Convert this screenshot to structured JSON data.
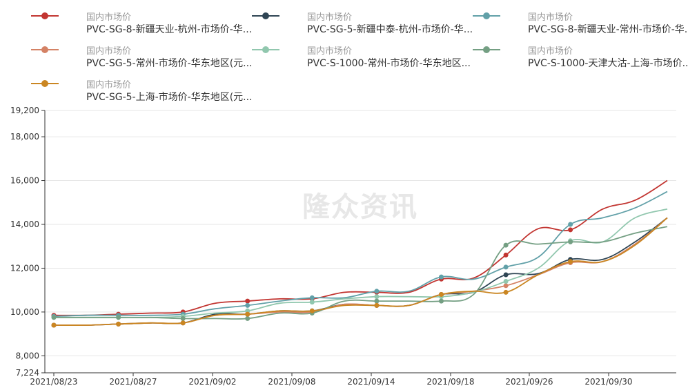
{
  "watermark": "隆众资讯",
  "chart_data": {
    "type": "line",
    "x_ticks": [
      "2021/08/23",
      "2021/08/27",
      "2021/09/02",
      "2021/09/08",
      "2021/09/14",
      "2021/09/18",
      "2021/09/26",
      "2021/09/30"
    ],
    "y_ticks": [
      "19,200",
      "18,000",
      "16,000",
      "14,000",
      "12,000",
      "10,000",
      "8,000",
      "7,224"
    ],
    "ylim": [
      7224,
      19200
    ],
    "grid": "horizontal",
    "legend_position": "top",
    "series": [
      {
        "group": "国内市场价",
        "name": "PVC-SG-8-新疆天业-杭州-市场价-华...",
        "color": "#c23531",
        "values": [
          9850,
          9850,
          9900,
          9950,
          10000,
          10400,
          10500,
          10600,
          10600,
          10900,
          10900,
          10900,
          11500,
          11550,
          12600,
          13800,
          13750,
          14700,
          15100,
          16000
        ],
        "markers": [
          0,
          2,
          4,
          6,
          8,
          10,
          12,
          14,
          16
        ]
      },
      {
        "group": "国内市场价",
        "name": "PVC-SG-5-新疆中泰-杭州-市场价-华...",
        "color": "#2f4554",
        "values": [
          9400,
          9400,
          9450,
          9500,
          9500,
          9900,
          9900,
          10050,
          10050,
          10350,
          10300,
          10300,
          10800,
          10900,
          11700,
          11750,
          12400,
          12400,
          13200,
          14300
        ],
        "markers": [
          0,
          2,
          4,
          6,
          8,
          10,
          12,
          14,
          16
        ]
      },
      {
        "group": "国内市场价",
        "name": "PVC-SG-8-新疆天业-常州-市场价-华...",
        "color": "#61a0a8",
        "values": [
          9800,
          9850,
          9850,
          9850,
          9900,
          10150,
          10300,
          10500,
          10650,
          10650,
          10950,
          10950,
          11600,
          11500,
          12050,
          12500,
          14000,
          14300,
          14750,
          15500
        ],
        "markers": [
          0,
          2,
          4,
          6,
          8,
          10,
          12,
          14,
          16
        ]
      },
      {
        "group": "国内市场价",
        "name": "PVC-SG-5-常州-市场价-华东地区(元...",
        "color": "#d48265",
        "values": [
          9400,
          9400,
          9450,
          9500,
          9500,
          9850,
          9900,
          10000,
          10000,
          10350,
          10300,
          10300,
          10800,
          10950,
          11200,
          11700,
          12250,
          12300,
          13100,
          14300
        ],
        "markers": [
          0,
          2,
          4,
          6,
          8,
          10,
          12,
          14,
          16
        ]
      },
      {
        "group": "国内市场价",
        "name": "PVC-S-1000-常州-市场价-华东地区...",
        "color": "#91c7ae",
        "values": [
          9750,
          9750,
          9750,
          9750,
          9800,
          9950,
          10050,
          10400,
          10450,
          10600,
          10700,
          10700,
          10700,
          10900,
          11400,
          12000,
          13250,
          13200,
          14300,
          14700
        ],
        "markers": [
          0,
          2,
          4,
          6,
          8,
          10,
          12,
          14,
          16
        ]
      },
      {
        "group": "国内市场价",
        "name": "PVC-S-1000-天津大沽-上海-市场价...",
        "color": "#749f83",
        "values": [
          9750,
          9750,
          9750,
          9750,
          9700,
          9700,
          9700,
          9950,
          9950,
          10500,
          10500,
          10500,
          10500,
          10800,
          13050,
          13100,
          13200,
          13200,
          13600,
          13900
        ],
        "markers": [
          0,
          2,
          4,
          6,
          8,
          10,
          12,
          14,
          16
        ]
      },
      {
        "group": "国内市场价",
        "name": "PVC-SG-5-上海-市场价-华东地区(元...",
        "color": "#ca8622",
        "values": [
          9400,
          9400,
          9450,
          9500,
          9500,
          9850,
          9900,
          10050,
          10050,
          10300,
          10300,
          10300,
          10800,
          10950,
          10900,
          11700,
          12300,
          12300,
          13050,
          14300
        ],
        "markers": [
          0,
          2,
          4,
          6,
          8,
          10,
          12,
          14,
          16
        ]
      }
    ]
  }
}
